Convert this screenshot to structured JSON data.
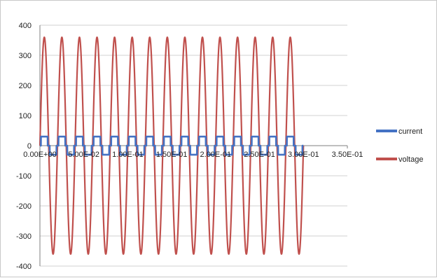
{
  "chart_data": {
    "type": "line",
    "title": "",
    "xlabel": "",
    "ylabel": "",
    "xlim": [
      0,
      0.35
    ],
    "ylim": [
      -400,
      400
    ],
    "x_ticks": [
      "0.00E+00",
      "5.00E-02",
      "1.00E-01",
      "1.50E-01",
      "2.00E-01",
      "2.50E-01",
      "3.00E-01",
      "3.50E-01"
    ],
    "y_ticks": [
      "400",
      "300",
      "200",
      "100",
      "0",
      "-100",
      "-200",
      "-300",
      "-400"
    ],
    "grid": "horizontal",
    "legend_position": "right",
    "series": [
      {
        "name": "current",
        "color": "#4472C4",
        "waveform": "stepped-square",
        "amplitude": 30,
        "frequency_hz": 50,
        "x_range": [
          0,
          0.3
        ]
      },
      {
        "name": "voltage",
        "color": "#C0504D",
        "waveform": "sine",
        "amplitude": 360,
        "frequency_hz": 50,
        "x_range": [
          0,
          0.3
        ]
      }
    ]
  }
}
